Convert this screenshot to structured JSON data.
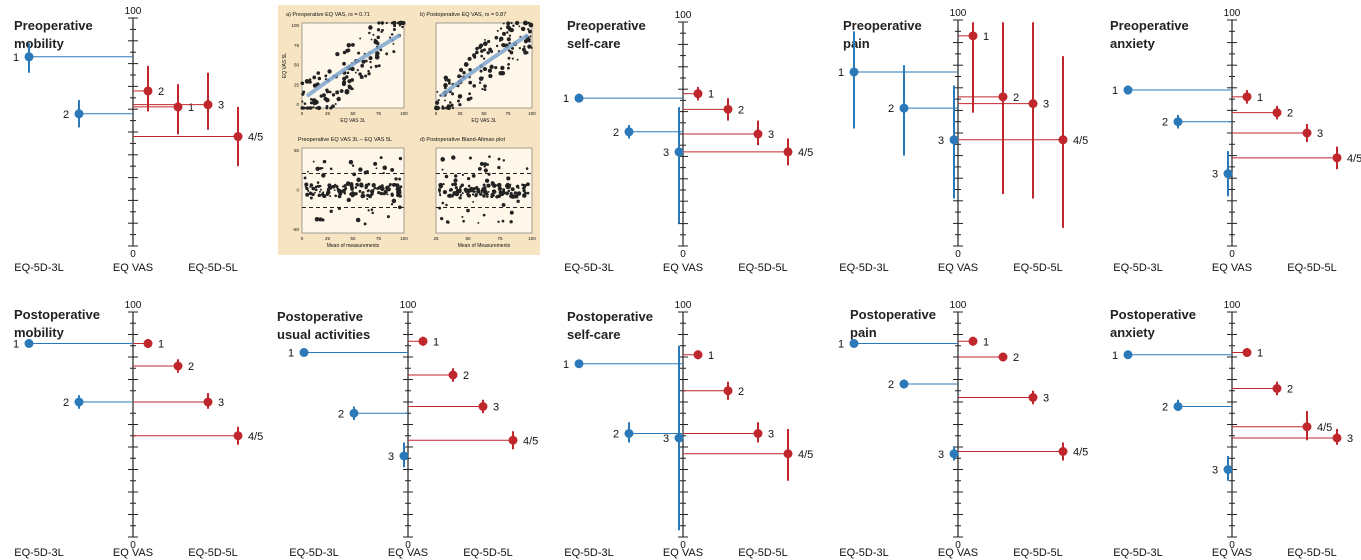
{
  "colors": {
    "eq3l": "#2b79b8",
    "eq5l": "#c0272d",
    "axis": "#222222",
    "inset_bg": "#f7e4c3",
    "inset_fit": "#7fa6cf"
  },
  "chart_data": [
    {
      "type": "dot-range",
      "title": "Preoperative mobility",
      "ylim": [
        0,
        100
      ],
      "axis_top_label": "100",
      "axis_bottom_label": "0",
      "xlabels": [
        "EQ-5D-3L",
        "EQ VAS",
        "EQ-5D-5L"
      ],
      "eq5d3l": [
        {
          "label": "1",
          "value": 83,
          "ci": [
            76,
            89
          ]
        },
        {
          "label": "2",
          "value": 58,
          "ci": [
            52,
            64
          ]
        }
      ],
      "eq5d5l": [
        {
          "label": "2",
          "value": 68,
          "ci": [
            59,
            79
          ]
        },
        {
          "label": "1",
          "value": 61,
          "ci": [
            49,
            71
          ]
        },
        {
          "label": "3",
          "value": 62,
          "ci": [
            51,
            76
          ]
        },
        {
          "label": "4/5",
          "value": 48,
          "ci": [
            35,
            61
          ]
        }
      ]
    },
    {
      "type": "dot-range",
      "title": "Preoperative self-care",
      "ylim": [
        0,
        100
      ],
      "axis_top_label": "100",
      "axis_bottom_label": "0",
      "xlabels": [
        "EQ-5D-3L",
        "EQ VAS",
        "EQ-5D-5L"
      ],
      "eq5d3l": [
        {
          "label": "1",
          "value": 66,
          "ci": [
            64,
            68
          ]
        },
        {
          "label": "2",
          "value": 51,
          "ci": [
            48,
            54
          ]
        },
        {
          "label": "3",
          "value": 42,
          "ci": [
            10,
            62
          ]
        }
      ],
      "eq5d5l": [
        {
          "label": "1",
          "value": 68,
          "ci": [
            65,
            71
          ]
        },
        {
          "label": "2",
          "value": 61,
          "ci": [
            56,
            66
          ]
        },
        {
          "label": "3",
          "value": 50,
          "ci": [
            45,
            56
          ]
        },
        {
          "label": "4/5",
          "value": 42,
          "ci": [
            36,
            48
          ]
        }
      ]
    },
    {
      "type": "dot-range",
      "title": "Preoperative pain",
      "ylim": [
        0,
        100
      ],
      "axis_top_label": "100",
      "axis_bottom_label": "0",
      "xlabels": [
        "EQ-5D-3L",
        "EQ VAS",
        "EQ-5D-5L"
      ],
      "eq5d3l": [
        {
          "label": "1",
          "value": 77,
          "ci": [
            52,
            95
          ]
        },
        {
          "label": "2",
          "value": 61,
          "ci": [
            40,
            80
          ]
        },
        {
          "label": "3",
          "value": 47,
          "ci": [
            21,
            71
          ]
        }
      ],
      "eq5d5l": [
        {
          "label": "1",
          "value": 93,
          "ci": [
            59,
            99
          ]
        },
        {
          "label": "2",
          "value": 66,
          "ci": [
            23,
            99
          ]
        },
        {
          "label": "3",
          "value": 63,
          "ci": [
            21,
            99
          ]
        },
        {
          "label": "4/5",
          "value": 47,
          "ci": [
            8,
            84
          ]
        }
      ]
    },
    {
      "type": "dot-range",
      "title": "Preoperative anxiety",
      "ylim": [
        0,
        100
      ],
      "axis_top_label": "100",
      "axis_bottom_label": "0",
      "xlabels": [
        "EQ-5D-3L",
        "EQ VAS",
        "EQ-5D-5L"
      ],
      "eq5d3l": [
        {
          "label": "1",
          "value": 69,
          "ci": [
            67,
            71
          ]
        },
        {
          "label": "2",
          "value": 55,
          "ci": [
            52,
            58
          ]
        },
        {
          "label": "3",
          "value": 32,
          "ci": [
            22,
            42
          ]
        }
      ],
      "eq5d5l": [
        {
          "label": "1",
          "value": 66,
          "ci": [
            63,
            69
          ]
        },
        {
          "label": "2",
          "value": 59,
          "ci": [
            56,
            62
          ]
        },
        {
          "label": "3",
          "value": 50,
          "ci": [
            46,
            54
          ]
        },
        {
          "label": "4/5",
          "value": 39,
          "ci": [
            34,
            44
          ]
        }
      ]
    },
    {
      "type": "dot-range",
      "title": "Postoperative mobility",
      "ylim": [
        0,
        100
      ],
      "axis_top_label": "100",
      "axis_bottom_label": "0",
      "xlabels": [
        "EQ-5D-3L",
        "EQ VAS",
        "EQ-5D-5L"
      ],
      "eq5d3l": [
        {
          "label": "1",
          "value": 86,
          "ci": [
            85,
            87
          ]
        },
        {
          "label": "2",
          "value": 60,
          "ci": [
            57,
            63
          ]
        }
      ],
      "eq5d5l": [
        {
          "label": "1",
          "value": 86,
          "ci": [
            84,
            88
          ]
        },
        {
          "label": "2",
          "value": 76,
          "ci": [
            73,
            79
          ]
        },
        {
          "label": "3",
          "value": 60,
          "ci": [
            57,
            64
          ]
        },
        {
          "label": "4/5",
          "value": 45,
          "ci": [
            41,
            49
          ]
        }
      ]
    },
    {
      "type": "dot-range",
      "title": "Postoperative usual activities",
      "ylim": [
        0,
        100
      ],
      "axis_top_label": "100",
      "axis_bottom_label": "0",
      "xlabels": [
        "EQ-5D-3L",
        "EQ VAS",
        "EQ-5D-5L"
      ],
      "eq5d3l": [
        {
          "label": "1",
          "value": 82,
          "ci": [
            81,
            83
          ]
        },
        {
          "label": "2",
          "value": 55,
          "ci": [
            52,
            58
          ]
        },
        {
          "label": "3",
          "value": 36,
          "ci": [
            31,
            42
          ]
        }
      ],
      "eq5d5l": [
        {
          "label": "1",
          "value": 87,
          "ci": [
            85,
            89
          ]
        },
        {
          "label": "2",
          "value": 72,
          "ci": [
            69,
            75
          ]
        },
        {
          "label": "3",
          "value": 58,
          "ci": [
            55,
            61
          ]
        },
        {
          "label": "4/5",
          "value": 43,
          "ci": [
            39,
            47
          ]
        }
      ]
    },
    {
      "type": "dot-range",
      "title": "Postoperative self-care",
      "ylim": [
        0,
        100
      ],
      "axis_top_label": "100",
      "axis_bottom_label": "0",
      "xlabels": [
        "EQ-5D-3L",
        "EQ VAS",
        "EQ-5D-5L"
      ],
      "eq5d3l": [
        {
          "label": "1",
          "value": 77,
          "ci": [
            76,
            78
          ]
        },
        {
          "label": "2",
          "value": 46,
          "ci": [
            42,
            51
          ]
        },
        {
          "label": "3",
          "value": 44,
          "ci": [
            3,
            85
          ]
        }
      ],
      "eq5d5l": [
        {
          "label": "1",
          "value": 81,
          "ci": [
            79,
            83
          ]
        },
        {
          "label": "2",
          "value": 65,
          "ci": [
            61,
            69
          ]
        },
        {
          "label": "3",
          "value": 46,
          "ci": [
            42,
            51
          ]
        },
        {
          "label": "4/5",
          "value": 37,
          "ci": [
            25,
            48
          ]
        }
      ]
    },
    {
      "type": "dot-range",
      "title": "Postoperative pain",
      "ylim": [
        0,
        100
      ],
      "axis_top_label": "100",
      "axis_bottom_label": "0",
      "xlabels": [
        "EQ-5D-3L",
        "EQ VAS",
        "EQ-5D-5L"
      ],
      "eq5d3l": [
        {
          "label": "1",
          "value": 86,
          "ci": [
            85,
            87
          ]
        },
        {
          "label": "2",
          "value": 68,
          "ci": [
            66,
            70
          ]
        },
        {
          "label": "3",
          "value": 37,
          "ci": [
            34,
            40
          ]
        }
      ],
      "eq5d5l": [
        {
          "label": "1",
          "value": 87,
          "ci": [
            85,
            89
          ]
        },
        {
          "label": "2",
          "value": 80,
          "ci": [
            78,
            82
          ]
        },
        {
          "label": "3",
          "value": 62,
          "ci": [
            59,
            65
          ]
        },
        {
          "label": "4/5",
          "value": 38,
          "ci": [
            34,
            42
          ]
        }
      ]
    },
    {
      "type": "dot-range",
      "title": "Postoperative anxiety",
      "ylim": [
        0,
        100
      ],
      "axis_top_label": "100",
      "axis_bottom_label": "0",
      "xlabels": [
        "EQ-5D-3L",
        "EQ VAS",
        "EQ-5D-5L"
      ],
      "eq5d3l": [
        {
          "label": "1",
          "value": 81,
          "ci": [
            80,
            82
          ]
        },
        {
          "label": "2",
          "value": 58,
          "ci": [
            56,
            61
          ]
        },
        {
          "label": "3",
          "value": 30,
          "ci": [
            25,
            36
          ]
        }
      ],
      "eq5d5l": [
        {
          "label": "1",
          "value": 82,
          "ci": [
            80,
            84
          ]
        },
        {
          "label": "2",
          "value": 66,
          "ci": [
            63,
            69
          ]
        },
        {
          "label": "4/5",
          "value": 49,
          "ci": [
            43,
            56
          ]
        },
        {
          "label": "3",
          "value": 44,
          "ci": [
            41,
            48
          ]
        }
      ]
    }
  ],
  "inset": {
    "panels": [
      {
        "type": "scatter",
        "title": "a) Preoperative EQ VAS, rs = 0.71",
        "xlabel": "EQ VAS 3L",
        "ylabel": "EQ VAS 5L",
        "xticks": [
          "0",
          "25",
          "50",
          "75",
          "100"
        ],
        "yticks": [
          "100",
          "75",
          "50",
          "25",
          "0"
        ]
      },
      {
        "type": "scatter",
        "title": "b) Postoperative EQ VAS, rs = 0.87",
        "xlabel": "EQ VAS 3L",
        "ylabel": "",
        "xticks": [
          "0",
          "25",
          "50",
          "75",
          "100"
        ],
        "yticks": []
      },
      {
        "type": "scatter",
        "title": "Preoperative EQ VAS 3L – EQ VAS 5L",
        "xlabel": "Mean of measurements",
        "ylabel": "",
        "xticks": [
          "0",
          "25",
          "50",
          "75",
          "100"
        ],
        "yticks": [
          "50",
          "0",
          "-50"
        ]
      },
      {
        "type": "scatter",
        "title": "d) Postoperative Bland-Altman plot",
        "xlabel": "Mean of Measurements",
        "ylabel": "",
        "xticks": [
          "25",
          "50",
          "75",
          "100"
        ],
        "yticks": []
      }
    ]
  }
}
